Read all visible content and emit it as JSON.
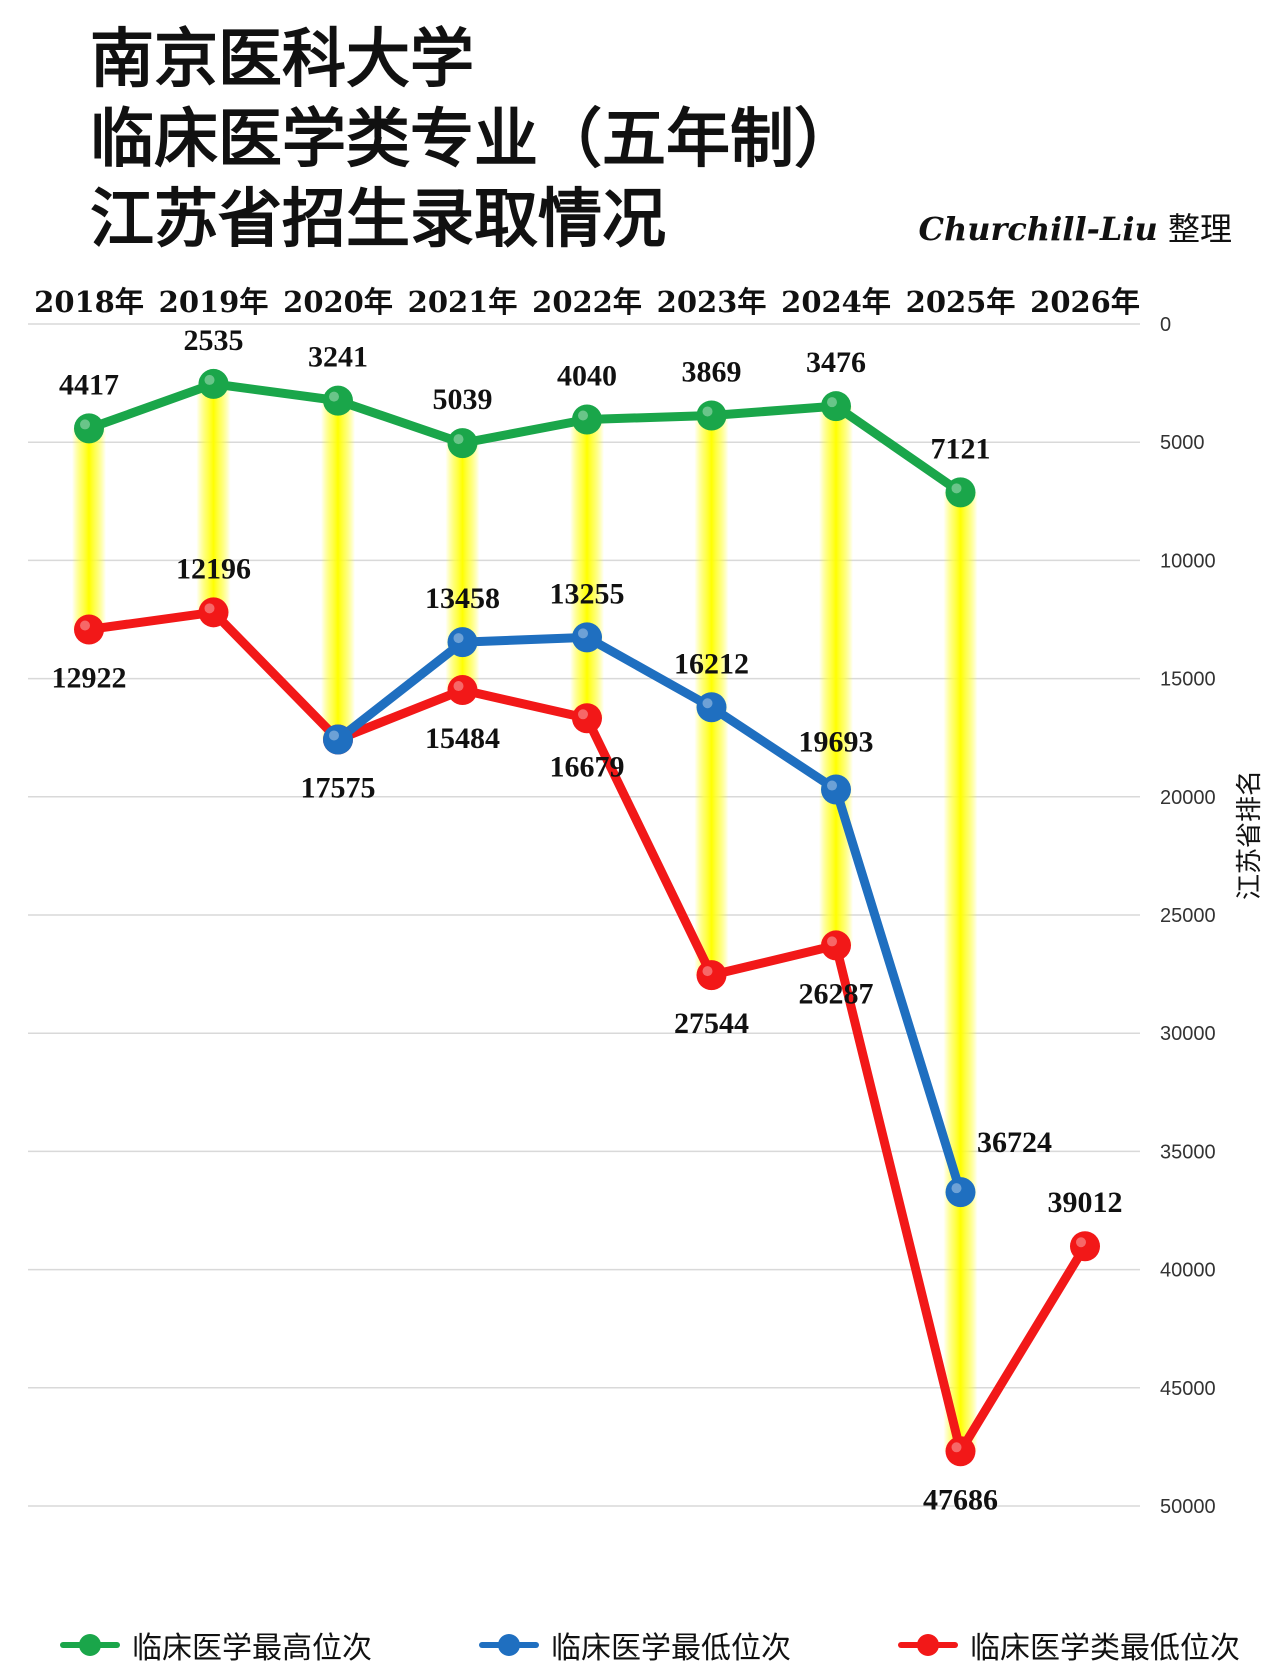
{
  "title_lines": [
    "南京医科大学",
    "临床医学类专业（五年制）",
    "江苏省招生录取情况"
  ],
  "credit": {
    "signature": "Churchill-Liu",
    "suffix": "整理"
  },
  "chart_data": {
    "type": "line",
    "x": [
      "2018年",
      "2019年",
      "2020年",
      "2021年",
      "2022年",
      "2023年",
      "2024年",
      "2025年",
      "2026年"
    ],
    "ylabel": "江苏省排名",
    "ylim": [
      0,
      50000
    ],
    "y_reversed": true,
    "y_ticks": [
      0,
      5000,
      10000,
      15000,
      20000,
      25000,
      30000,
      35000,
      40000,
      45000,
      50000
    ],
    "y_axis_side": "right",
    "x_axis_side": "top",
    "grid": true,
    "legend_position": "bottom",
    "series": [
      {
        "name": "临床医学最高位次",
        "color": "#1aa64a",
        "values": [
          4417,
          2535,
          3241,
          5039,
          4040,
          3869,
          3476,
          7121,
          null
        ]
      },
      {
        "name": "临床医学最低位次",
        "color": "#1f6fc0",
        "values": [
          null,
          null,
          17575,
          13458,
          13255,
          16212,
          19693,
          36724,
          null
        ]
      },
      {
        "name": "临床医学类最低位次",
        "color": "#f21818",
        "values": [
          12922,
          12196,
          17575,
          15484,
          16679,
          27544,
          26287,
          47686,
          39012
        ]
      }
    ]
  }
}
